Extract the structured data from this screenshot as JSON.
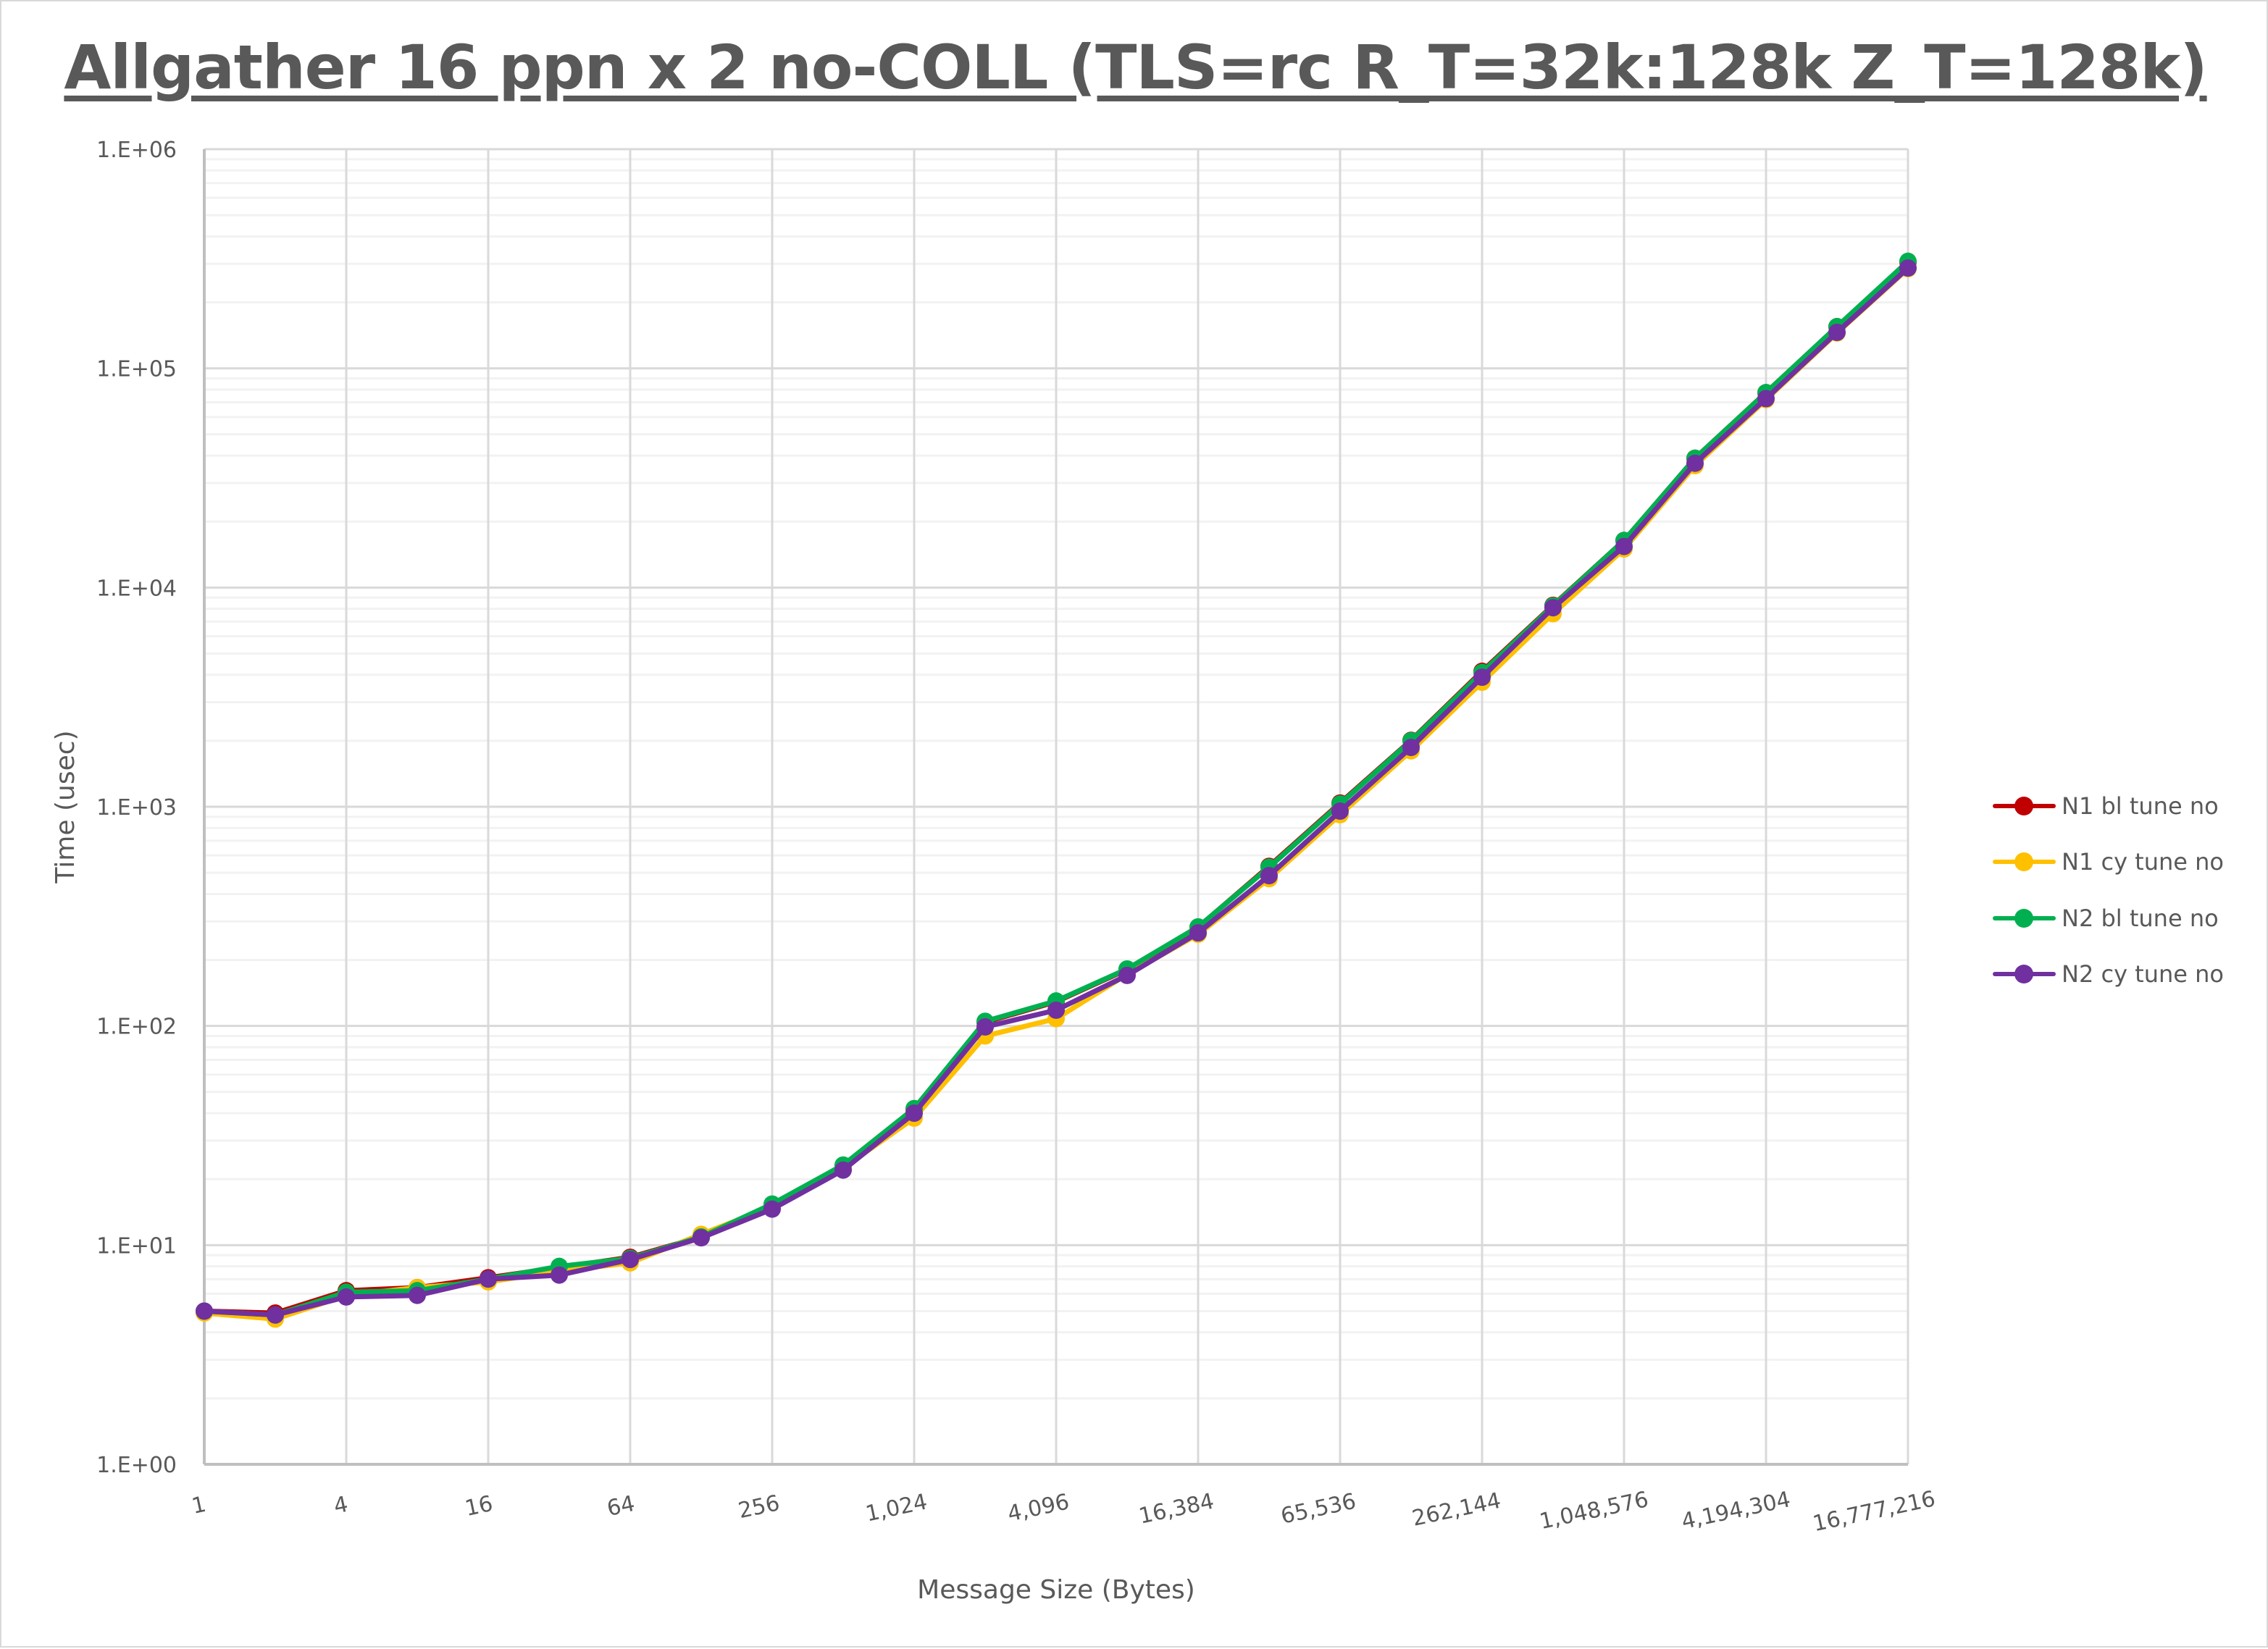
{
  "chart_data": {
    "type": "line",
    "title": "Allgather 16 ppn x 2 no-COLL (TLS=rc R_T=32k:128k Z_T=128k)",
    "xlabel": "Message Size (Bytes)",
    "ylabel": "Time (usec)",
    "x_scale": "log2",
    "y_scale": "log10",
    "ylim": [
      1,
      1000000
    ],
    "grid": true,
    "legend_position": "right",
    "y_tick_labels": [
      "1.E+00",
      "1.E+01",
      "1.E+02",
      "1.E+03",
      "1.E+04",
      "1.E+05",
      "1.E+06"
    ],
    "x_tick_labels": [
      "1",
      "4",
      "16",
      "64",
      "256",
      "1,024",
      "4,096",
      "16,384",
      "65,536",
      "262,144",
      "1,048,576",
      "4,194,304",
      "16,777,216"
    ],
    "x": [
      1,
      2,
      4,
      8,
      16,
      32,
      64,
      128,
      256,
      512,
      1024,
      2048,
      4096,
      8192,
      16384,
      32768,
      65536,
      131072,
      262144,
      524288,
      1048576,
      2097152,
      4194304,
      8388608,
      16777216
    ],
    "series": [
      {
        "name": "N1 bl tune no",
        "color": "#c00000",
        "values": [
          5.0,
          4.9,
          6.2,
          6.4,
          7.1,
          7.9,
          8.8,
          10.9,
          15.2,
          23.0,
          41.5,
          104,
          129,
          181,
          282,
          535,
          1040,
          2010,
          4150,
          8300,
          16400,
          38900,
          77500,
          155000,
          305000
        ]
      },
      {
        "name": "N1 cy tune no",
        "color": "#ffc000",
        "values": [
          4.9,
          4.6,
          5.9,
          6.4,
          6.8,
          7.6,
          8.3,
          11.2,
          15.0,
          22.5,
          38.0,
          90,
          108,
          172,
          262,
          470,
          920,
          1800,
          3700,
          7600,
          15000,
          36000,
          72000,
          145000,
          285000
        ]
      },
      {
        "name": "N2 bl tune no",
        "color": "#00b050",
        "values": [
          5.0,
          4.8,
          6.1,
          6.2,
          7.0,
          8.0,
          8.7,
          10.9,
          15.4,
          23.2,
          42.0,
          105,
          130,
          182,
          283,
          530,
          1030,
          2000,
          4100,
          8250,
          16400,
          38900,
          77500,
          155000,
          308000
        ]
      },
      {
        "name": "N2 cy tune no",
        "color": "#7030a0",
        "values": [
          5.0,
          4.8,
          5.8,
          5.9,
          7.0,
          7.3,
          8.6,
          10.8,
          14.6,
          22.0,
          40.0,
          99,
          118,
          170,
          266,
          485,
          955,
          1865,
          3900,
          8090,
          15400,
          36900,
          72800,
          146000,
          287000
        ]
      }
    ]
  },
  "legend": {
    "items": [
      {
        "label": "N1 bl tune no",
        "color": "#c00000"
      },
      {
        "label": "N1 cy tune no",
        "color": "#ffc000"
      },
      {
        "label": "N2 bl tune no",
        "color": "#00b050"
      },
      {
        "label": "N2 cy tune no",
        "color": "#7030a0"
      }
    ]
  }
}
